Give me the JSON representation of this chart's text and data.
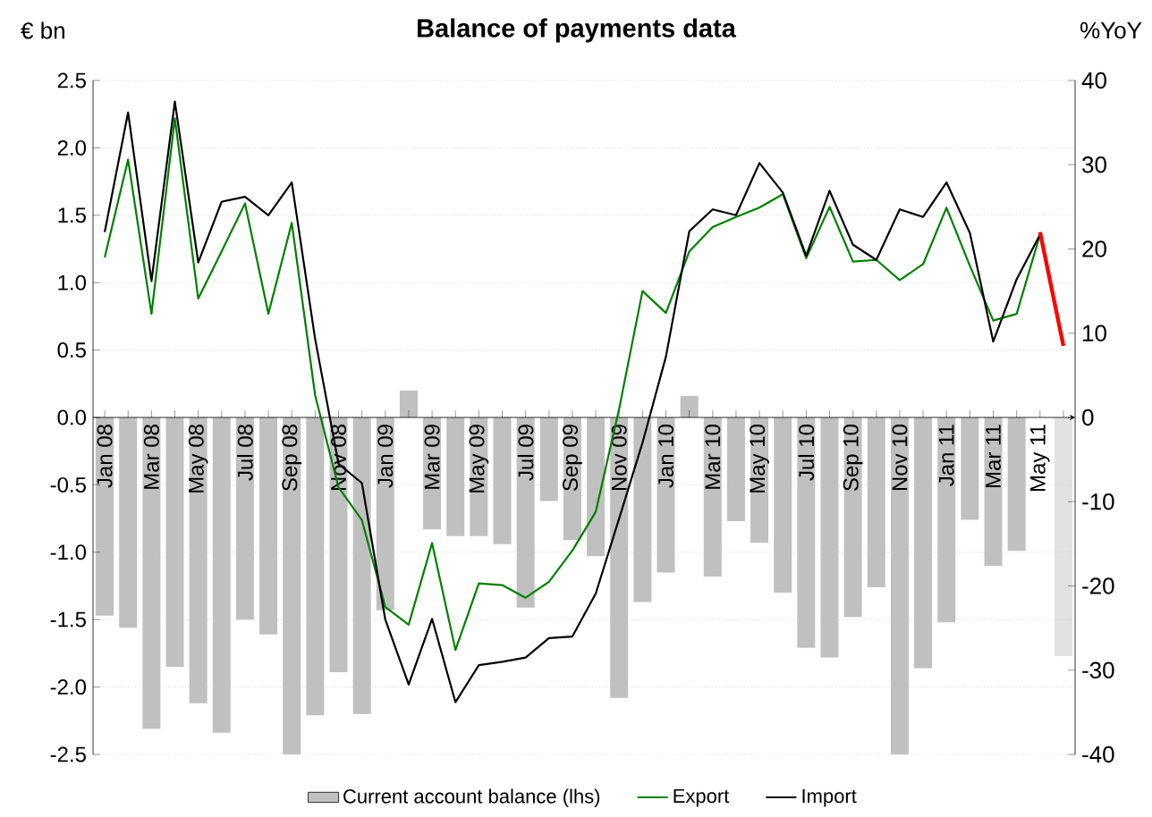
{
  "chart_data": {
    "type": "bar",
    "title": "Balance of payments data",
    "ylabel": "€ bn",
    "y2label": "%YoY",
    "categories": [
      "Jan 08",
      null,
      "Mar 08",
      null,
      "May 08",
      null,
      "Jul 08",
      null,
      "Sep 08",
      null,
      "Nov 08",
      null,
      "Jan 09",
      null,
      "Mar 09",
      null,
      "May 09",
      null,
      "Jul 09",
      null,
      "Sep 09",
      null,
      "Nov 09",
      null,
      "Jan 10",
      null,
      "Mar 10",
      null,
      "May 10",
      null,
      "Jul 10",
      null,
      "Sep 10",
      null,
      "Nov 10",
      null,
      "Jan 11",
      null,
      "Mar 11",
      null,
      "May 11",
      null
    ],
    "series": [
      {
        "name": "Current account balance (lhs)",
        "color": "#c0c0c0",
        "colors": [
          "#c0c0c0",
          "#c0c0c0",
          "#c0c0c0",
          "#c0c0c0",
          "#c0c0c0",
          "#c0c0c0",
          "#c0c0c0",
          "#c0c0c0",
          "#c0c0c0",
          "#c0c0c0",
          "#c0c0c0",
          "#c0c0c0",
          "#c0c0c0",
          "#c0c0c0",
          "#c0c0c0",
          "#c0c0c0",
          "#c0c0c0",
          "#c0c0c0",
          "#c0c0c0",
          "#c0c0c0",
          "#c0c0c0",
          "#c0c0c0",
          "#c0c0c0",
          "#c0c0c0",
          "#c0c0c0",
          "#c0c0c0",
          "#c0c0c0",
          "#c0c0c0",
          "#c0c0c0",
          "#c0c0c0",
          "#c0c0c0",
          "#c0c0c0",
          "#c0c0c0",
          "#c0c0c0",
          "#c0c0c0",
          "#c0c0c0",
          "#c0c0c0",
          "#c0c0c0",
          "#c0c0c0",
          "#c0c0c0",
          "#c0c0c0",
          "#e2e2e2"
        ],
        "values": [
          -1.47,
          -1.56,
          -2.31,
          -1.85,
          -2.12,
          -2.34,
          -1.5,
          -1.61,
          -2.5,
          -2.21,
          -1.89,
          -2.2,
          -1.43,
          0.2,
          -0.83,
          -0.88,
          -0.88,
          -0.94,
          -1.41,
          -0.62,
          -0.91,
          -1.03,
          -2.08,
          -1.37,
          -1.15,
          0.16,
          -1.18,
          -0.77,
          -0.93,
          -1.3,
          -1.71,
          -1.78,
          -1.48,
          -1.26,
          -2.5,
          -1.86,
          -1.52,
          -0.76,
          -1.1,
          -0.99,
          null,
          -1.77
        ]
      },
      {
        "name": "Export",
        "type": "line",
        "axis": "y2",
        "color": "#008000",
        "values": [
          19,
          30.6,
          12.3,
          35.5,
          14.1,
          19.7,
          25.4,
          12.3,
          23.1,
          2.6,
          -8.3,
          -12.2,
          -22.5,
          -24.6,
          -14.9,
          -27.6,
          -19.7,
          -19.9,
          -21.4,
          -19.5,
          -15.8,
          -11.2,
          1,
          15,
          12.4,
          19.7,
          22.6,
          23.8,
          24.9,
          26.5,
          18.9,
          25,
          18.5,
          18.7,
          16.3,
          18.2,
          24.9,
          18,
          11.5,
          12.3,
          21.7,
          null
        ]
      },
      {
        "name": "Import",
        "type": "line",
        "axis": "y2",
        "color": "#000000",
        "values": [
          22,
          36.2,
          16.2,
          37.5,
          18.4,
          25.6,
          26.2,
          24,
          27.9,
          9.3,
          -5.5,
          -7.8,
          -24,
          -31.7,
          -23.9,
          -33.8,
          -29.4,
          -29,
          -28.5,
          -26.2,
          -26,
          -20.9,
          -12,
          -3,
          7.2,
          22.1,
          24.7,
          24,
          30.2,
          26.7,
          19.2,
          26.9,
          20.5,
          18.7,
          24.7,
          23.8,
          27.9,
          21.9,
          9,
          16.4,
          21.7,
          null
        ]
      },
      {
        "type": "line",
        "axis": "y2",
        "color": "#ff0000",
        "values": [
          null,
          null,
          null,
          null,
          null,
          null,
          null,
          null,
          null,
          null,
          null,
          null,
          null,
          null,
          null,
          null,
          null,
          null,
          null,
          null,
          null,
          null,
          null,
          null,
          null,
          null,
          null,
          null,
          null,
          null,
          null,
          null,
          null,
          null,
          null,
          null,
          null,
          null,
          null,
          null,
          22,
          8.5
        ]
      }
    ],
    "ylim": [
      -2.5,
      2.5
    ],
    "yticks": [
      {
        "value": 2.5,
        "label": "2.5"
      },
      {
        "value": 2,
        "label": "2.0"
      },
      {
        "value": 1.5,
        "label": "1.5"
      },
      {
        "value": 1,
        "label": "1.0"
      },
      {
        "value": 0.5,
        "label": "0.5"
      },
      {
        "value": 0,
        "label": "0.0"
      },
      {
        "value": -0.5,
        "label": "-0.5"
      },
      {
        "value": -1,
        "label": "-1.0"
      },
      {
        "value": -1.5,
        "label": "-1.5"
      },
      {
        "value": -2,
        "label": "-2.0"
      },
      {
        "value": -2.5,
        "label": "-2.5"
      }
    ],
    "y2lim": [
      -40,
      40
    ],
    "y2ticks": [
      40,
      30,
      20,
      10,
      0,
      -10,
      -20,
      -30,
      -40
    ],
    "grid": "y",
    "legend": "bottom"
  }
}
